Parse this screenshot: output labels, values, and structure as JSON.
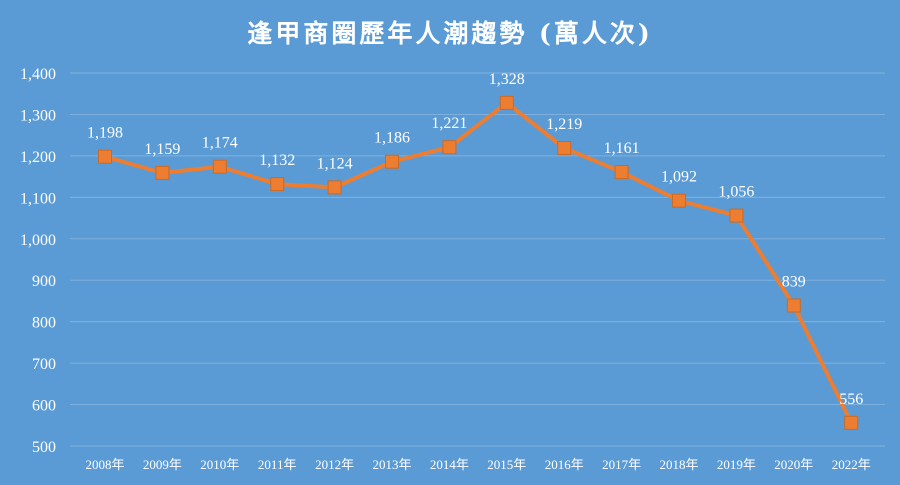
{
  "colors": {
    "background": "#5b9bd5",
    "line": "#ed7d31",
    "text": "#ffffff",
    "grid": "#7fb0dd"
  },
  "chart_data": {
    "type": "line",
    "title": "逢甲商圈歷年人潮趨勢 (萬人次)",
    "xlabel": "",
    "ylabel": "",
    "ylim": [
      500,
      1400
    ],
    "yticks": [
      500,
      600,
      700,
      800,
      900,
      1000,
      1100,
      1200,
      1300,
      1400
    ],
    "ytick_labels": [
      "500",
      "600",
      "700",
      "800",
      "900",
      "1,000",
      "1,100",
      "1,200",
      "1,300",
      "1,400"
    ],
    "grid": true,
    "legend": "none",
    "categories": [
      "2008年",
      "2009年",
      "2010年",
      "2011年",
      "2012年",
      "2013年",
      "2014年",
      "2015年",
      "2016年",
      "2017年",
      "2018年",
      "2019年",
      "2020年",
      "2022年"
    ],
    "series": [
      {
        "values": [
          1198,
          1159,
          1174,
          1132,
          1124,
          1186,
          1221,
          1328,
          1219,
          1161,
          1092,
          1056,
          839,
          556
        ],
        "labels": [
          "1,198",
          "1,159",
          "1,174",
          "1,132",
          "1,124",
          "1,186",
          "1,221",
          "1,328",
          "1,219",
          "1,161",
          "1,092",
          "1,056",
          "839",
          "556"
        ],
        "marker": "square"
      }
    ]
  }
}
